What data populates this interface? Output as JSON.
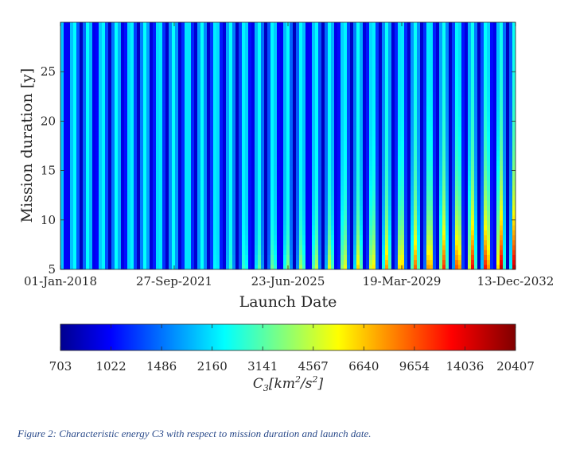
{
  "caption": "Figure 2: Characteristic energy C3 with respect to mission duration and launch date.",
  "chart_data": {
    "type": "heatmap",
    "xlabel": "Launch Date",
    "ylabel": "Mission duration [y]",
    "x_tick_labels": [
      "01-Jan-2018",
      "27-Sep-2021",
      "23-Jun-2025",
      "19-Mar-2029",
      "13-Dec-2032"
    ],
    "xlim": [
      "01-Jan-2018",
      "13-Dec-2032"
    ],
    "y_ticks": [
      5,
      10,
      15,
      20,
      25
    ],
    "ylim": [
      5,
      30
    ],
    "colorbar": {
      "label_main": "C",
      "label_sub": "3",
      "label_rest": "[km",
      "label_sup": "2",
      "label_rest2": "/s",
      "label_sup2": "2",
      "label_end": "]",
      "tick_labels": [
        "703",
        "1022",
        "1486",
        "2160",
        "3141",
        "4567",
        "6640",
        "9654",
        "14036",
        "20407"
      ],
      "scale": "log",
      "colormap": "jet"
    },
    "description_of_pattern": {
      "synodic_periods": 32,
      "minimum_c3": 703,
      "maximum_c3": 20407
    }
  }
}
